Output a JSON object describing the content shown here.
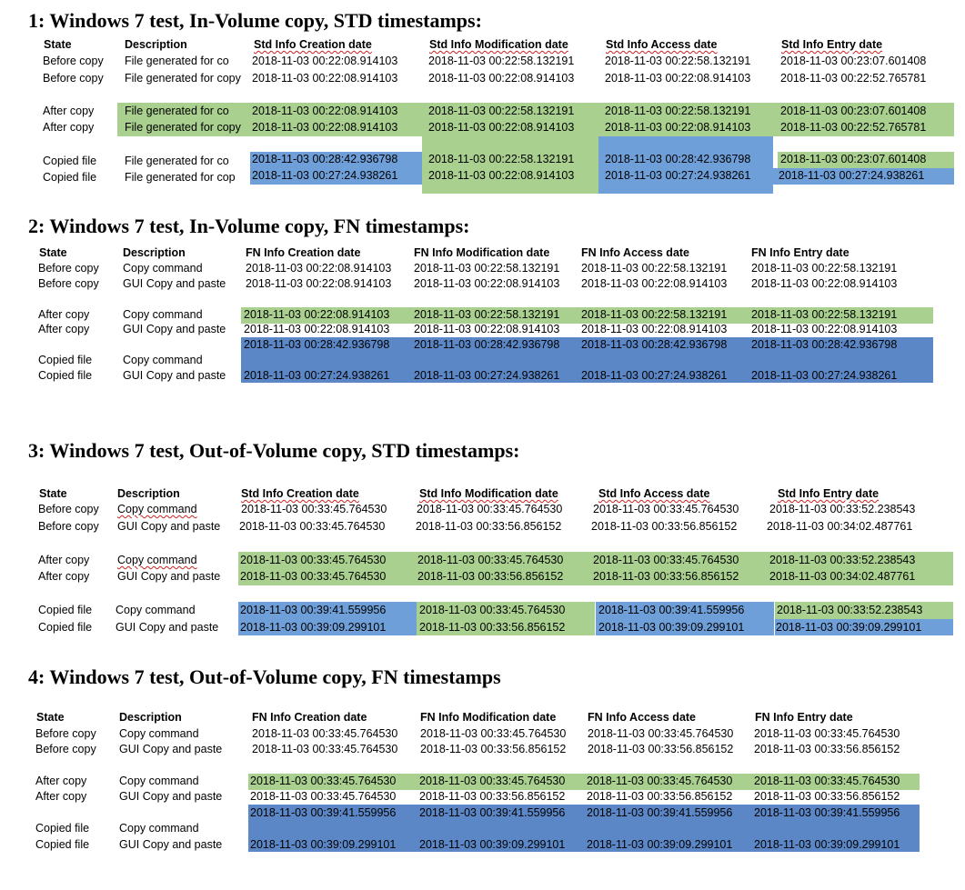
{
  "sections": [
    {
      "title": "1: Windows 7 test, In-Volume copy, STD timestamps:",
      "headers": [
        "State",
        "Description",
        "Std Info Creation date",
        "Std Info Modification date",
        "Std Info Access date",
        "Std Info Entry date"
      ],
      "rows": [
        {
          "state": "Before copy",
          "desc": "File generated for co",
          "c1": "2018-11-03  00:22:08.914103",
          "c2": "2018-11-03  00:22:58.132191",
          "c3": "2018-11-03  00:22:58.132191",
          "c4": "2018-11-03  00:23:07.601408"
        },
        {
          "state": "Before copy",
          "desc": "File generated for copy",
          "c1": "2018-11-03  00:22:08.914103",
          "c2": "2018-11-03  00:22:08.914103",
          "c3": "2018-11-03  00:22:08.914103",
          "c4": "2018-11-03  00:22:52.765781"
        },
        {
          "state": "After copy",
          "desc": "File generated for co",
          "c1": "2018-11-03  00:22:08.914103",
          "c2": "2018-11-03  00:22:58.132191",
          "c3": "2018-11-03  00:22:58.132191",
          "c4": "2018-11-03  00:23:07.601408"
        },
        {
          "state": "After copy",
          "desc": "File generated for copy",
          "c1": "2018-11-03  00:22:08.914103",
          "c2": "2018-11-03  00:22:08.914103",
          "c3": "2018-11-03  00:22:08.914103",
          "c4": "2018-11-03  00:22:52.765781"
        },
        {
          "state": "Copied file",
          "desc": "File generated for co",
          "c1": "2018-11-03  00:28:42.936798",
          "c2": "2018-11-03  00:22:58.132191",
          "c3": "2018-11-03  00:28:42.936798",
          "c4": "2018-11-03  00:23:07.601408"
        },
        {
          "state": "Copied file",
          "desc": "File generated for cop",
          "c1": "2018-11-03  00:27:24.938261",
          "c2": "2018-11-03  00:22:08.914103",
          "c3": "2018-11-03  00:27:24.938261",
          "c4": "2018-11-03  00:27:24.938261"
        }
      ]
    },
    {
      "title": "2: Windows 7 test, In-Volume copy, FN timestamps:",
      "headers": [
        "State",
        "Description",
        "FN Info Creation date",
        "FN Info Modification date",
        "FN Info Access date",
        "FN Info Entry date"
      ],
      "rows": [
        {
          "state": "Before copy",
          "desc": "Copy command",
          "c1": "2018-11-03  00:22:08.914103",
          "c2": "2018-11-03  00:22:58.132191",
          "c3": "2018-11-03  00:22:58.132191",
          "c4": "2018-11-03  00:22:58.132191"
        },
        {
          "state": "Before copy",
          "desc": "GUI Copy and paste",
          "c1": "2018-11-03  00:22:08.914103",
          "c2": "2018-11-03  00:22:08.914103",
          "c3": "2018-11-03  00:22:08.914103",
          "c4": "2018-11-03  00:22:08.914103"
        },
        {
          "state": "After copy",
          "desc": "Copy command",
          "c1": "2018-11-03  00:22:08.914103",
          "c2": "2018-11-03  00:22:58.132191",
          "c3": "2018-11-03  00:22:58.132191",
          "c4": "2018-11-03  00:22:58.132191"
        },
        {
          "state": "After copy",
          "desc": "GUI Copy and paste",
          "c1": "2018-11-03  00:22:08.914103",
          "c2": "2018-11-03  00:22:08.914103",
          "c3": "2018-11-03  00:22:08.914103",
          "c4": "2018-11-03  00:22:08.914103"
        },
        {
          "state": "Copied file",
          "desc": "Copy command",
          "c1": "2018-11-03  00:28:42.936798",
          "c2": "2018-11-03  00:28:42.936798",
          "c3": "2018-11-03  00:28:42.936798",
          "c4": "2018-11-03  00:28:42.936798"
        },
        {
          "state": "Copied file",
          "desc": "GUI Copy and paste",
          "c1": "2018-11-03  00:27:24.938261",
          "c2": "2018-11-03  00:27:24.938261",
          "c3": "2018-11-03  00:27:24.938261",
          "c4": "2018-11-03  00:27:24.938261"
        }
      ]
    },
    {
      "title": "3: Windows 7 test, Out-of-Volume copy, STD timestamps:",
      "headers": [
        "State",
        "Description",
        "Std Info Creation date",
        "Std Info Modification date",
        "Std Info Access date",
        "Std Info Entry date"
      ],
      "rows": [
        {
          "state": "Before copy",
          "desc": "Copy command",
          "c1": "2018-11-03 00:33:45.764530",
          "c2": "2018-11-03 00:33:45.764530",
          "c3": "2018-11-03 00:33:45.764530",
          "c4": "2018-11-03 00:33:52.238543"
        },
        {
          "state": "Before copy",
          "desc": "GUI Copy and paste",
          "c1": "2018-11-03 00:33:45.764530",
          "c2": "2018-11-03 00:33:56.856152",
          "c3": "2018-11-03 00:33:56.856152",
          "c4": "2018-11-03 00:34:02.487761"
        },
        {
          "state": "After copy",
          "desc": "Copy command",
          "c1": "2018-11-03 00:33:45.764530",
          "c2": "2018-11-03 00:33:45.764530",
          "c3": "2018-11-03 00:33:45.764530",
          "c4": "2018-11-03 00:33:52.238543"
        },
        {
          "state": "After copy",
          "desc": "GUI Copy and paste",
          "c1": "2018-11-03 00:33:45.764530",
          "c2": "2018-11-03 00:33:56.856152",
          "c3": "2018-11-03 00:33:56.856152",
          "c4": "2018-11-03 00:34:02.487761"
        },
        {
          "state": "Copied file",
          "desc": "Copy command",
          "c1": "2018-11-03 00:39:41.559956",
          "c2": "2018-11-03 00:33:45.764530",
          "c3": "2018-11-03 00:39:41.559956",
          "c4": "2018-11-03 00:33:52.238543"
        },
        {
          "state": "Copied file",
          "desc": "GUI Copy and paste",
          "c1": "2018-11-03 00:39:09.299101",
          "c2": "2018-11-03 00:33:56.856152",
          "c3": "2018-11-03 00:39:09.299101",
          "c4": "2018-11-03 00:39:09.299101"
        }
      ]
    },
    {
      "title": "4: Windows 7 test, Out-of-Volume copy, FN timestamps",
      "headers": [
        "State",
        "Description",
        "FN Info Creation date",
        "FN Info Modification date",
        "FN Info Access date",
        "FN Info Entry date"
      ],
      "rows": [
        {
          "state": "Before copy",
          "desc": "Copy command",
          "c1": "2018-11-03 00:33:45.764530",
          "c2": "2018-11-03 00:33:45.764530",
          "c3": "2018-11-03 00:33:45.764530",
          "c4": "2018-11-03 00:33:45.764530"
        },
        {
          "state": "Before copy",
          "desc": "GUI Copy and paste",
          "c1": "2018-11-03 00:33:45.764530",
          "c2": "2018-11-03 00:33:56.856152",
          "c3": "2018-11-03 00:33:56.856152",
          "c4": "2018-11-03 00:33:56.856152"
        },
        {
          "state": "After copy",
          "desc": "Copy command",
          "c1": "2018-11-03  00:33:45.764530",
          "c2": "2018-11-03  00:33:45.764530",
          "c3": "2018-11-03  00:33:45.764530",
          "c4": "2018-11-03  00:33:45.764530"
        },
        {
          "state": "After copy",
          "desc": "GUI Copy and paste",
          "c1": "2018-11-03 00:33:45.764530",
          "c2": "2018-11-03 00:33:56.856152",
          "c3": "2018-11-03 00:33:56.856152",
          "c4": "2018-11-03 00:33:56.856152"
        },
        {
          "state": "Copied file",
          "desc": "Copy command",
          "c1": "2018-11-03 00:39:41.559956",
          "c2": "2018-11-03 00:39:41.559956",
          "c3": "2018-11-03 00:39:41.559956",
          "c4": "2018-11-03 00:39:41.559956"
        },
        {
          "state": "Copied file",
          "desc": "GUI Copy and paste",
          "c1": "2018-11-03 00:39:09.299101",
          "c2": "2018-11-03 00:39:09.299101",
          "c3": "2018-11-03 00:39:09.299101",
          "c4": "2018-11-03 00:39:09.299101"
        }
      ]
    }
  ]
}
